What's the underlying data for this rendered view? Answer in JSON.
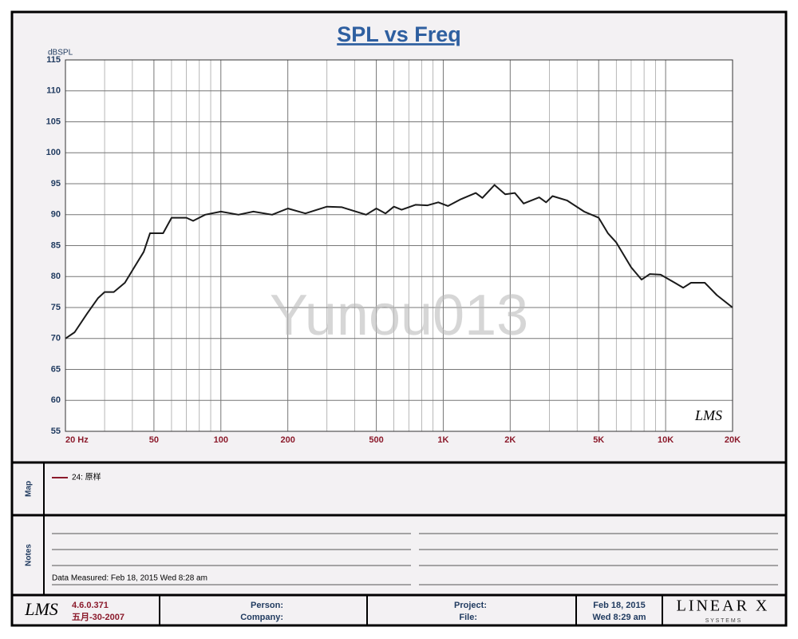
{
  "chart_data": {
    "type": "line",
    "title": "SPL vs Freq",
    "y_label": "dBSPL",
    "annotation": "Yunou013",
    "logo": "LMS",
    "x_scale": "log",
    "grid": true,
    "xlim": [
      20,
      20000
    ],
    "ylim": [
      55,
      115
    ],
    "xticks": [
      {
        "value": 20,
        "label": "20  Hz"
      },
      50,
      100,
      200,
      500,
      {
        "value": 1000,
        "label": "1K"
      },
      {
        "value": 2000,
        "label": "2K"
      },
      {
        "value": 5000,
        "label": "5K"
      },
      {
        "value": 10000,
        "label": "10K"
      },
      {
        "value": 20000,
        "label": "20K"
      }
    ],
    "x_minor_ticks": [
      30,
      40,
      60,
      70,
      80,
      90,
      300,
      400,
      600,
      700,
      800,
      900,
      3000,
      4000,
      6000,
      7000,
      8000,
      9000
    ],
    "yticks": [
      55,
      60,
      65,
      70,
      75,
      80,
      85,
      90,
      95,
      100,
      105,
      110,
      115
    ],
    "x": [
      20,
      22,
      25,
      28,
      30,
      33,
      37,
      40,
      45,
      48,
      55,
      60,
      70,
      75,
      85,
      100,
      120,
      140,
      170,
      200,
      240,
      300,
      350,
      450,
      500,
      550,
      600,
      650,
      750,
      850,
      950,
      1050,
      1200,
      1400,
      1500,
      1700,
      1900,
      2100,
      2300,
      2700,
      2900,
      3100,
      3600,
      4300,
      5000,
      5500,
      6000,
      7000,
      7800,
      8500,
      9500,
      11000,
      12000,
      13000,
      15000,
      17000,
      20000
    ],
    "series": [
      {
        "name": "24: 原样",
        "color": "#1a1a1a",
        "values": [
          70,
          71,
          74,
          76.5,
          77.5,
          77.5,
          79,
          81,
          84,
          87,
          87,
          89.5,
          89.5,
          89,
          90,
          90.5,
          90,
          90.5,
          90,
          91,
          90.2,
          91.3,
          91.2,
          90,
          91,
          90.2,
          91.3,
          90.8,
          91.6,
          91.5,
          92,
          91.4,
          92.5,
          93.5,
          92.7,
          94.8,
          93.3,
          93.5,
          91.8,
          92.8,
          92,
          93,
          92.3,
          90.5,
          89.5,
          87,
          85.5,
          81.5,
          79.5,
          80.4,
          80.3,
          79,
          78.2,
          79,
          79,
          77,
          75
        ]
      }
    ]
  },
  "map": {
    "label": "Map"
  },
  "notes": {
    "label": "Notes",
    "text": "Data Measured: Feb 18, 2015  Wed  8:28 am"
  },
  "footer": {
    "logo": "LMS",
    "version": "4.6.0.371",
    "build_date": "五月-30-2007",
    "person": "Person:",
    "company": "Company:",
    "project": "Project:",
    "file": "File:",
    "date": "Feb 18, 2015",
    "time": "Wed  8:29 am",
    "brand": "LINEAR X",
    "brand_sub": "S Y S T E M S"
  }
}
